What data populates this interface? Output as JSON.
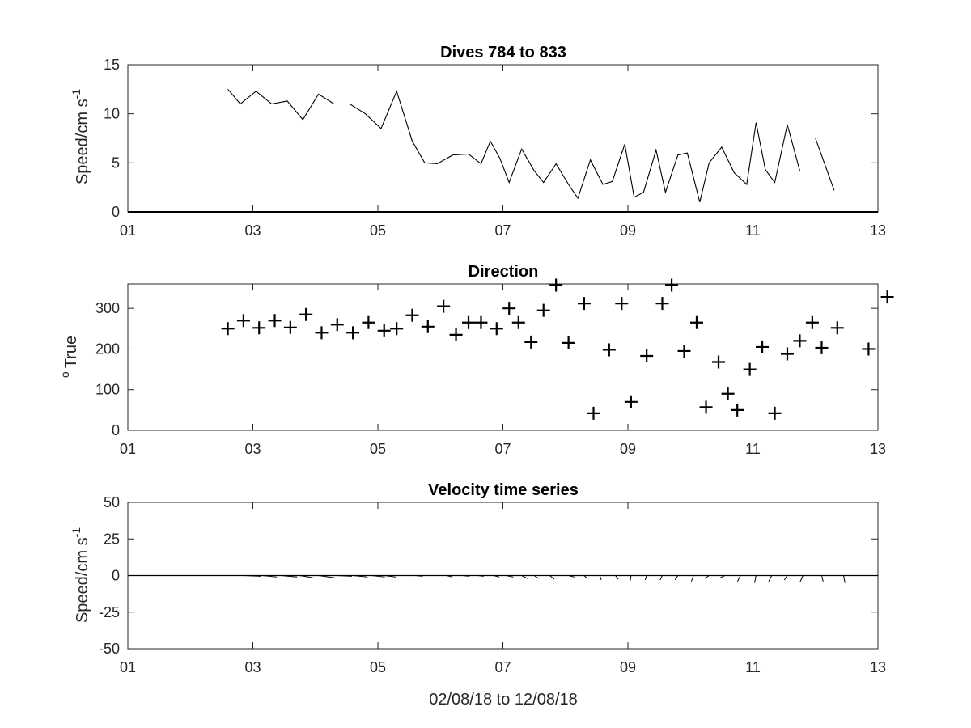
{
  "chart_data": [
    {
      "type": "line",
      "title": "Dives 784 to 833",
      "ylabel": "Speed/cm s",
      "ylabel_sup": "-1",
      "xlim": [
        1,
        13
      ],
      "ylim": [
        0,
        15
      ],
      "xticks": [
        "01",
        "03",
        "05",
        "07",
        "09",
        "11",
        "13"
      ],
      "yticks": [
        "0",
        "5",
        "10",
        "15"
      ],
      "series": [
        {
          "segments": [
            [
              [
                2.6,
                12.5
              ],
              [
                2.8,
                11.0
              ],
              [
                3.05,
                12.3
              ],
              [
                3.3,
                11.0
              ],
              [
                3.55,
                11.3
              ],
              [
                3.8,
                9.4
              ],
              [
                4.05,
                12.0
              ],
              [
                4.3,
                11.0
              ],
              [
                4.55,
                11.0
              ],
              [
                4.8,
                10.0
              ],
              [
                5.05,
                8.5
              ],
              [
                5.3,
                12.3
              ],
              [
                5.55,
                7.2
              ],
              [
                5.75,
                5.0
              ],
              [
                5.95,
                4.9
              ],
              [
                6.2,
                5.8
              ],
              [
                6.45,
                5.9
              ],
              [
                6.65,
                4.9
              ],
              [
                6.8,
                7.2
              ],
              [
                6.95,
                5.5
              ],
              [
                7.1,
                3.0
              ],
              [
                7.3,
                6.4
              ],
              [
                7.5,
                4.2
              ],
              [
                7.65,
                3.0
              ],
              [
                7.85,
                4.9
              ],
              [
                8.05,
                2.8
              ],
              [
                8.2,
                1.4
              ],
              [
                8.4,
                5.3
              ],
              [
                8.6,
                2.8
              ],
              [
                8.75,
                3.1
              ],
              [
                8.95,
                6.9
              ],
              [
                9.1,
                1.5
              ],
              [
                9.25,
                2.0
              ],
              [
                9.45,
                6.3
              ],
              [
                9.6,
                2.0
              ],
              [
                9.8,
                5.8
              ],
              [
                9.95,
                6.0
              ],
              [
                10.15,
                1.0
              ],
              [
                10.3,
                5.0
              ],
              [
                10.5,
                6.6
              ],
              [
                10.7,
                4.0
              ],
              [
                10.9,
                2.8
              ],
              [
                11.05,
                9.1
              ],
              [
                11.2,
                4.3
              ],
              [
                11.35,
                3.0
              ],
              [
                11.55,
                8.9
              ],
              [
                11.75,
                4.2
              ]
            ],
            [
              [
                12.0,
                7.5
              ],
              [
                12.3,
                2.2
              ]
            ]
          ]
        }
      ]
    },
    {
      "type": "scatter",
      "title": "Direction",
      "ylabel": "True",
      "ylabel_sup": "o",
      "xlim": [
        1,
        13
      ],
      "ylim": [
        0,
        360
      ],
      "xticks": [
        "01",
        "03",
        "05",
        "07",
        "09",
        "11",
        "13"
      ],
      "yticks": [
        "0",
        "100",
        "200",
        "300"
      ],
      "series": [
        {
          "points": [
            [
              2.6,
              250
            ],
            [
              2.85,
              270
            ],
            [
              3.1,
              252
            ],
            [
              3.35,
              270
            ],
            [
              3.6,
              253
            ],
            [
              3.85,
              285
            ],
            [
              4.1,
              240
            ],
            [
              4.35,
              260
            ],
            [
              4.6,
              240
            ],
            [
              4.85,
              265
            ],
            [
              5.1,
              245
            ],
            [
              5.3,
              250
            ],
            [
              5.55,
              283
            ],
            [
              5.8,
              255
            ],
            [
              6.05,
              305
            ],
            [
              6.25,
              235
            ],
            [
              6.45,
              265
            ],
            [
              6.65,
              265
            ],
            [
              6.9,
              250
            ],
            [
              7.1,
              300
            ],
            [
              7.25,
              265
            ],
            [
              7.45,
              217
            ],
            [
              7.65,
              295
            ],
            [
              7.85,
              357
            ],
            [
              8.05,
              215
            ],
            [
              8.3,
              312
            ],
            [
              8.45,
              42
            ],
            [
              8.7,
              198
            ],
            [
              8.9,
              312
            ],
            [
              9.05,
              70
            ],
            [
              9.3,
              183
            ],
            [
              9.55,
              312
            ],
            [
              9.7,
              357
            ],
            [
              9.9,
              195
            ],
            [
              10.1,
              265
            ],
            [
              10.25,
              57
            ],
            [
              10.45,
              168
            ],
            [
              10.6,
              90
            ],
            [
              10.75,
              50
            ],
            [
              10.95,
              150
            ],
            [
              11.15,
              205
            ],
            [
              11.35,
              42
            ],
            [
              11.55,
              188
            ],
            [
              11.75,
              220
            ],
            [
              11.95,
              265
            ],
            [
              12.1,
              203
            ],
            [
              12.35,
              252
            ],
            [
              12.85,
              200
            ],
            [
              13.15,
              328
            ]
          ]
        }
      ]
    },
    {
      "type": "line",
      "title": "Velocity time series",
      "ylabel": "Speed/cm s",
      "ylabel_sup": "-1",
      "xlabel": "02/08/18 to 12/08/18",
      "xlim": [
        1,
        13
      ],
      "ylim": [
        -50,
        50
      ],
      "xticks": [
        "01",
        "03",
        "05",
        "07",
        "09",
        "11",
        "13"
      ],
      "yticks": [
        "-50",
        "-25",
        "0",
        "25",
        "50"
      ],
      "vectors": [
        [
          2.2,
          -12.5,
          0
        ],
        [
          2.5,
          -11,
          0
        ],
        [
          2.85,
          -12,
          -0.5
        ],
        [
          3.15,
          -10,
          -1
        ],
        [
          3.45,
          -11,
          -1
        ],
        [
          3.75,
          -9,
          -1.5
        ],
        [
          4.05,
          -11,
          -1.5
        ],
        [
          4.35,
          -10,
          -0.5
        ],
        [
          4.6,
          -10,
          -1
        ],
        [
          4.9,
          -9,
          -1
        ],
        [
          5.1,
          -8,
          -1
        ],
        [
          5.35,
          -8,
          0
        ],
        [
          5.6,
          -5,
          -0.5
        ],
        [
          5.85,
          -5,
          0
        ],
        [
          6.1,
          -4,
          -1
        ],
        [
          6.35,
          -5,
          -0.5
        ],
        [
          6.6,
          -4,
          -0.5
        ],
        [
          6.85,
          -4,
          -1
        ],
        [
          7.05,
          -5,
          -1
        ],
        [
          7.3,
          -4,
          -2
        ],
        [
          7.5,
          -3,
          -2
        ],
        [
          7.75,
          -3,
          -2.5
        ],
        [
          8.05,
          -4,
          -1
        ],
        [
          8.3,
          -2,
          -2
        ],
        [
          8.55,
          -1,
          -3
        ],
        [
          8.8,
          -2,
          -2.5
        ],
        [
          9.05,
          0.5,
          -3.5
        ],
        [
          9.3,
          1,
          -3
        ],
        [
          9.55,
          1.5,
          -3
        ],
        [
          9.8,
          2,
          -3
        ],
        [
          10.05,
          1.5,
          -4
        ],
        [
          10.3,
          3,
          -2
        ],
        [
          10.55,
          3,
          -1.5
        ],
        [
          10.8,
          2,
          -4
        ],
        [
          11.05,
          1,
          -5
        ],
        [
          11.3,
          2,
          -4
        ],
        [
          11.55,
          2,
          -3
        ],
        [
          11.8,
          2,
          -4.5
        ],
        [
          12.1,
          -1,
          -4
        ],
        [
          12.45,
          -1,
          -5
        ]
      ]
    }
  ]
}
